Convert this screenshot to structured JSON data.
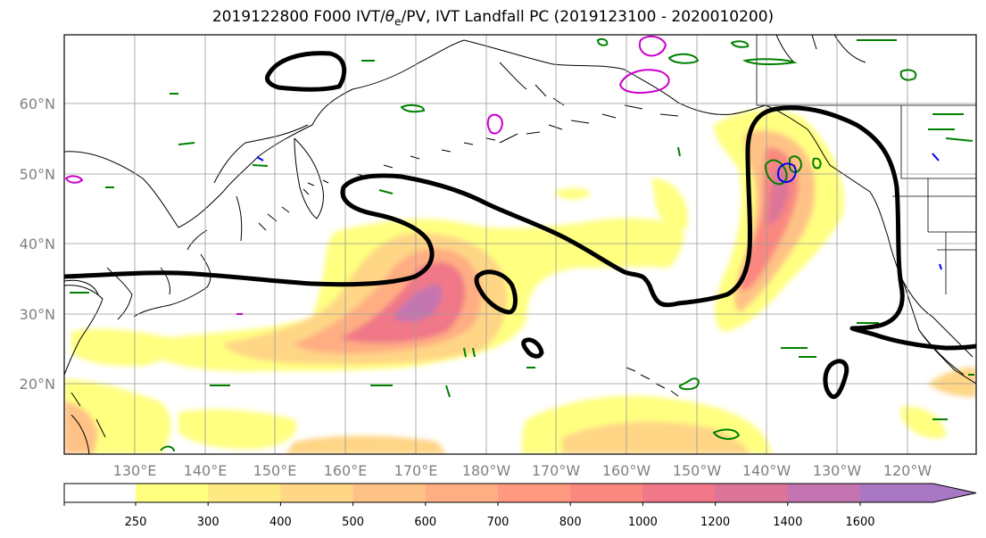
{
  "title": {
    "prefix": "2019122800 F000 IVT/",
    "theta": "θ",
    "theta_sub": "e",
    "suffix": "/PV, IVT Landfall PC (2019123100 - 2020010200)"
  },
  "lat_labels": [
    "60°N",
    "50°N",
    "40°N",
    "30°N",
    "20°N"
  ],
  "lon_labels": [
    "130°E",
    "140°E",
    "150°E",
    "160°E",
    "170°E",
    "180°W",
    "170°W",
    "160°W",
    "150°W",
    "140°W",
    "130°W",
    "120°W"
  ],
  "colorbar": {
    "labels": [
      "250",
      "300",
      "400",
      "500",
      "600",
      "700",
      "800",
      "1000",
      "1200",
      "1400",
      "1600"
    ],
    "colors": [
      "#ffff80",
      "#ffe983",
      "#ffd586",
      "#ffc286",
      "#ffae83",
      "#ff9a80",
      "#fa8880",
      "#f07888",
      "#dc7498",
      "#c474b0",
      "#a978c4"
    ]
  },
  "colors": {
    "coast": "#000000",
    "grid": "#999999",
    "contour_main": "#000000",
    "pv_green": "#008000",
    "pv_blue": "#0000ee",
    "pv_magenta": "#cc00cc"
  }
}
